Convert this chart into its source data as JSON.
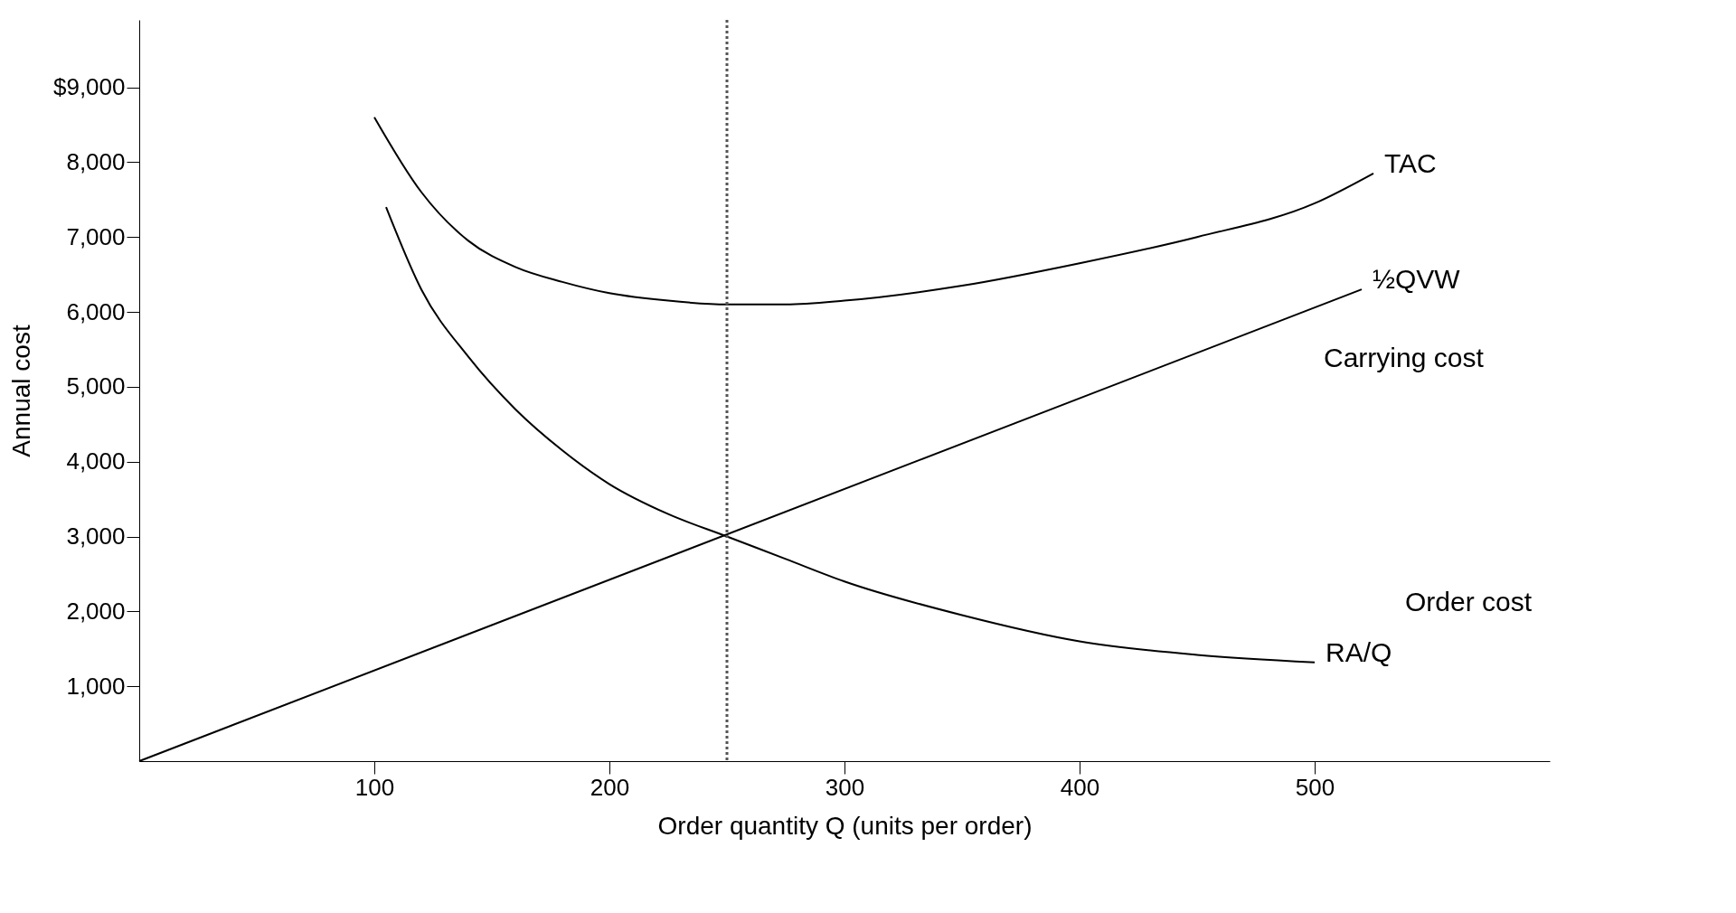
{
  "chart_data": {
    "type": "line",
    "xlabel": "Order quantity Q (units per order)",
    "ylabel": "Annual cost",
    "xlim": [
      0,
      600
    ],
    "xticks": [
      100,
      200,
      300,
      400,
      500
    ],
    "ylim": [
      0,
      9900
    ],
    "yticks": [
      {
        "value": 1000,
        "label": "1,000"
      },
      {
        "value": 2000,
        "label": "2,000"
      },
      {
        "value": 3000,
        "label": "3,000"
      },
      {
        "value": 4000,
        "label": "4,000"
      },
      {
        "value": 5000,
        "label": "5,000"
      },
      {
        "value": 6000,
        "label": "6,000"
      },
      {
        "value": 7000,
        "label": "7,000"
      },
      {
        "value": 8000,
        "label": "8,000"
      },
      {
        "value": 9000,
        "label": "$9,000"
      }
    ],
    "grid": false,
    "marker": "none",
    "line_style": "solid",
    "series": [
      {
        "name": "TAC",
        "color": "#000000",
        "x": [
          100,
          120,
          140,
          160,
          180,
          200,
          225,
          250,
          275,
          300,
          350,
          400,
          450,
          500,
          525
        ],
        "values": [
          8600,
          7600,
          6950,
          6600,
          6400,
          6250,
          6150,
          6100,
          6100,
          6150,
          6350,
          6650,
          7000,
          7450,
          7850
        ]
      },
      {
        "name": "½QVW",
        "color": "#000000",
        "x": [
          0,
          520
        ],
        "values": [
          0,
          6300
        ]
      },
      {
        "name": "RA/Q",
        "color": "#000000",
        "x": [
          105,
          120,
          140,
          160,
          180,
          200,
          225,
          250,
          275,
          300,
          350,
          400,
          450,
          500
        ],
        "values": [
          7400,
          6300,
          5400,
          4700,
          4150,
          3700,
          3300,
          3000,
          2700,
          2400,
          1950,
          1600,
          1420,
          1320
        ]
      }
    ],
    "ref_lines": [
      {
        "axis": "x",
        "value": 250,
        "color": "#555555",
        "line_style": "dotted"
      }
    ],
    "annotations": [
      "Carrying cost",
      "Order cost"
    ]
  }
}
